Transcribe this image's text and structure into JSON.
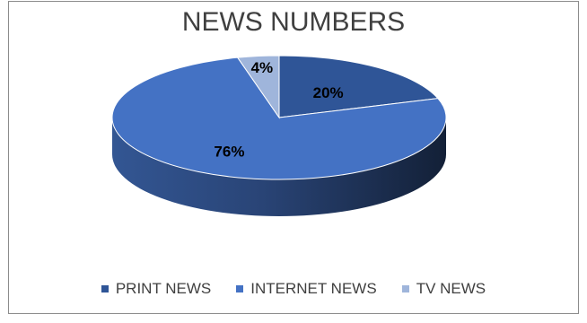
{
  "chart_data": {
    "type": "pie",
    "title": "NEWS NUMBERS",
    "categories": [
      "PRINT NEWS",
      "INTERNET NEWS",
      "TV NEWS"
    ],
    "values": [
      20,
      76,
      4
    ],
    "data_labels": [
      "20%",
      "76%",
      "4%"
    ],
    "colors": [
      "#2f5597",
      "#4472c4",
      "#9fb5db"
    ],
    "legend_position": "bottom",
    "style": "3d"
  }
}
